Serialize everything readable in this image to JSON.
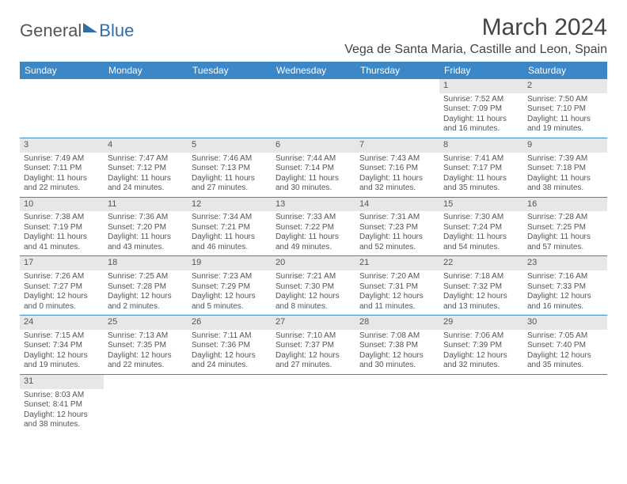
{
  "logo": {
    "text1": "General",
    "text2": "Blue"
  },
  "header": {
    "month_title": "March 2024",
    "location": "Vega de Santa Maria, Castille and Leon, Spain"
  },
  "colors": {
    "header_bg": "#3b87c8",
    "header_text": "#ffffff",
    "daynum_bg": "#e7e7e7",
    "cell_border": "#3b87c8",
    "body_text": "#555555"
  },
  "columns": [
    "Sunday",
    "Monday",
    "Tuesday",
    "Wednesday",
    "Thursday",
    "Friday",
    "Saturday"
  ],
  "weeks": [
    [
      {
        "day": "",
        "sunrise": "",
        "sunset": "",
        "daylight": ""
      },
      {
        "day": "",
        "sunrise": "",
        "sunset": "",
        "daylight": ""
      },
      {
        "day": "",
        "sunrise": "",
        "sunset": "",
        "daylight": ""
      },
      {
        "day": "",
        "sunrise": "",
        "sunset": "",
        "daylight": ""
      },
      {
        "day": "",
        "sunrise": "",
        "sunset": "",
        "daylight": ""
      },
      {
        "day": "1",
        "sunrise": "Sunrise: 7:52 AM",
        "sunset": "Sunset: 7:09 PM",
        "daylight": "Daylight: 11 hours and 16 minutes."
      },
      {
        "day": "2",
        "sunrise": "Sunrise: 7:50 AM",
        "sunset": "Sunset: 7:10 PM",
        "daylight": "Daylight: 11 hours and 19 minutes."
      }
    ],
    [
      {
        "day": "3",
        "sunrise": "Sunrise: 7:49 AM",
        "sunset": "Sunset: 7:11 PM",
        "daylight": "Daylight: 11 hours and 22 minutes."
      },
      {
        "day": "4",
        "sunrise": "Sunrise: 7:47 AM",
        "sunset": "Sunset: 7:12 PM",
        "daylight": "Daylight: 11 hours and 24 minutes."
      },
      {
        "day": "5",
        "sunrise": "Sunrise: 7:46 AM",
        "sunset": "Sunset: 7:13 PM",
        "daylight": "Daylight: 11 hours and 27 minutes."
      },
      {
        "day": "6",
        "sunrise": "Sunrise: 7:44 AM",
        "sunset": "Sunset: 7:14 PM",
        "daylight": "Daylight: 11 hours and 30 minutes."
      },
      {
        "day": "7",
        "sunrise": "Sunrise: 7:43 AM",
        "sunset": "Sunset: 7:16 PM",
        "daylight": "Daylight: 11 hours and 32 minutes."
      },
      {
        "day": "8",
        "sunrise": "Sunrise: 7:41 AM",
        "sunset": "Sunset: 7:17 PM",
        "daylight": "Daylight: 11 hours and 35 minutes."
      },
      {
        "day": "9",
        "sunrise": "Sunrise: 7:39 AM",
        "sunset": "Sunset: 7:18 PM",
        "daylight": "Daylight: 11 hours and 38 minutes."
      }
    ],
    [
      {
        "day": "10",
        "sunrise": "Sunrise: 7:38 AM",
        "sunset": "Sunset: 7:19 PM",
        "daylight": "Daylight: 11 hours and 41 minutes."
      },
      {
        "day": "11",
        "sunrise": "Sunrise: 7:36 AM",
        "sunset": "Sunset: 7:20 PM",
        "daylight": "Daylight: 11 hours and 43 minutes."
      },
      {
        "day": "12",
        "sunrise": "Sunrise: 7:34 AM",
        "sunset": "Sunset: 7:21 PM",
        "daylight": "Daylight: 11 hours and 46 minutes."
      },
      {
        "day": "13",
        "sunrise": "Sunrise: 7:33 AM",
        "sunset": "Sunset: 7:22 PM",
        "daylight": "Daylight: 11 hours and 49 minutes."
      },
      {
        "day": "14",
        "sunrise": "Sunrise: 7:31 AM",
        "sunset": "Sunset: 7:23 PM",
        "daylight": "Daylight: 11 hours and 52 minutes."
      },
      {
        "day": "15",
        "sunrise": "Sunrise: 7:30 AM",
        "sunset": "Sunset: 7:24 PM",
        "daylight": "Daylight: 11 hours and 54 minutes."
      },
      {
        "day": "16",
        "sunrise": "Sunrise: 7:28 AM",
        "sunset": "Sunset: 7:25 PM",
        "daylight": "Daylight: 11 hours and 57 minutes."
      }
    ],
    [
      {
        "day": "17",
        "sunrise": "Sunrise: 7:26 AM",
        "sunset": "Sunset: 7:27 PM",
        "daylight": "Daylight: 12 hours and 0 minutes."
      },
      {
        "day": "18",
        "sunrise": "Sunrise: 7:25 AM",
        "sunset": "Sunset: 7:28 PM",
        "daylight": "Daylight: 12 hours and 2 minutes."
      },
      {
        "day": "19",
        "sunrise": "Sunrise: 7:23 AM",
        "sunset": "Sunset: 7:29 PM",
        "daylight": "Daylight: 12 hours and 5 minutes."
      },
      {
        "day": "20",
        "sunrise": "Sunrise: 7:21 AM",
        "sunset": "Sunset: 7:30 PM",
        "daylight": "Daylight: 12 hours and 8 minutes."
      },
      {
        "day": "21",
        "sunrise": "Sunrise: 7:20 AM",
        "sunset": "Sunset: 7:31 PM",
        "daylight": "Daylight: 12 hours and 11 minutes."
      },
      {
        "day": "22",
        "sunrise": "Sunrise: 7:18 AM",
        "sunset": "Sunset: 7:32 PM",
        "daylight": "Daylight: 12 hours and 13 minutes."
      },
      {
        "day": "23",
        "sunrise": "Sunrise: 7:16 AM",
        "sunset": "Sunset: 7:33 PM",
        "daylight": "Daylight: 12 hours and 16 minutes."
      }
    ],
    [
      {
        "day": "24",
        "sunrise": "Sunrise: 7:15 AM",
        "sunset": "Sunset: 7:34 PM",
        "daylight": "Daylight: 12 hours and 19 minutes."
      },
      {
        "day": "25",
        "sunrise": "Sunrise: 7:13 AM",
        "sunset": "Sunset: 7:35 PM",
        "daylight": "Daylight: 12 hours and 22 minutes."
      },
      {
        "day": "26",
        "sunrise": "Sunrise: 7:11 AM",
        "sunset": "Sunset: 7:36 PM",
        "daylight": "Daylight: 12 hours and 24 minutes."
      },
      {
        "day": "27",
        "sunrise": "Sunrise: 7:10 AM",
        "sunset": "Sunset: 7:37 PM",
        "daylight": "Daylight: 12 hours and 27 minutes."
      },
      {
        "day": "28",
        "sunrise": "Sunrise: 7:08 AM",
        "sunset": "Sunset: 7:38 PM",
        "daylight": "Daylight: 12 hours and 30 minutes."
      },
      {
        "day": "29",
        "sunrise": "Sunrise: 7:06 AM",
        "sunset": "Sunset: 7:39 PM",
        "daylight": "Daylight: 12 hours and 32 minutes."
      },
      {
        "day": "30",
        "sunrise": "Sunrise: 7:05 AM",
        "sunset": "Sunset: 7:40 PM",
        "daylight": "Daylight: 12 hours and 35 minutes."
      }
    ],
    [
      {
        "day": "31",
        "sunrise": "Sunrise: 8:03 AM",
        "sunset": "Sunset: 8:41 PM",
        "daylight": "Daylight: 12 hours and 38 minutes."
      },
      {
        "day": "",
        "sunrise": "",
        "sunset": "",
        "daylight": ""
      },
      {
        "day": "",
        "sunrise": "",
        "sunset": "",
        "daylight": ""
      },
      {
        "day": "",
        "sunrise": "",
        "sunset": "",
        "daylight": ""
      },
      {
        "day": "",
        "sunrise": "",
        "sunset": "",
        "daylight": ""
      },
      {
        "day": "",
        "sunrise": "",
        "sunset": "",
        "daylight": ""
      },
      {
        "day": "",
        "sunrise": "",
        "sunset": "",
        "daylight": ""
      }
    ]
  ]
}
